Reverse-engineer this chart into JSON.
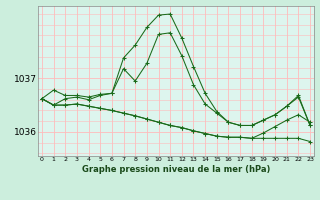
{
  "title": "Graphe pression niveau de la mer (hPa)",
  "background_color": "#cceedd",
  "plot_bg_color": "#ddf5ee",
  "grid_color": "#ffbbbb",
  "line_color": "#1a6b1a",
  "x_labels": [
    "0",
    "1",
    "2",
    "3",
    "4",
    "5",
    "6",
    "7",
    "8",
    "9",
    "10",
    "11",
    "12",
    "13",
    "14",
    "15",
    "16",
    "17",
    "18",
    "19",
    "20",
    "21",
    "22",
    "23"
  ],
  "y_ticks": [
    1036,
    1037
  ],
  "ylim": [
    1035.55,
    1038.35
  ],
  "xlim": [
    -0.3,
    23.3
  ],
  "series": [
    [
      1036.62,
      1036.78,
      1036.68,
      1036.68,
      1036.65,
      1036.7,
      1036.72,
      1037.18,
      1036.95,
      1037.28,
      1037.82,
      1037.85,
      1037.42,
      1036.88,
      1036.52,
      1036.35,
      1036.18,
      1036.12,
      1036.12,
      1036.22,
      1036.32,
      1036.48,
      1036.65,
      1036.12
    ],
    [
      1036.62,
      1036.5,
      1036.62,
      1036.65,
      1036.6,
      1036.68,
      1036.72,
      1037.38,
      1037.62,
      1037.95,
      1038.18,
      1038.2,
      1037.75,
      1037.22,
      1036.72,
      1036.38,
      1036.18,
      1036.12,
      1036.12,
      1036.22,
      1036.32,
      1036.48,
      1036.68,
      1036.12
    ],
    [
      1036.62,
      1036.5,
      1036.5,
      1036.52,
      1036.48,
      1036.44,
      1036.4,
      1036.35,
      1036.3,
      1036.24,
      1036.18,
      1036.12,
      1036.08,
      1036.02,
      1035.97,
      1035.92,
      1035.9,
      1035.9,
      1035.88,
      1035.88,
      1035.88,
      1035.88,
      1035.88,
      1035.82
    ],
    [
      1036.62,
      1036.5,
      1036.5,
      1036.52,
      1036.48,
      1036.44,
      1036.4,
      1036.35,
      1036.3,
      1036.24,
      1036.18,
      1036.12,
      1036.08,
      1036.02,
      1035.97,
      1035.92,
      1035.9,
      1035.9,
      1035.88,
      1035.98,
      1036.1,
      1036.22,
      1036.32,
      1036.18
    ]
  ]
}
